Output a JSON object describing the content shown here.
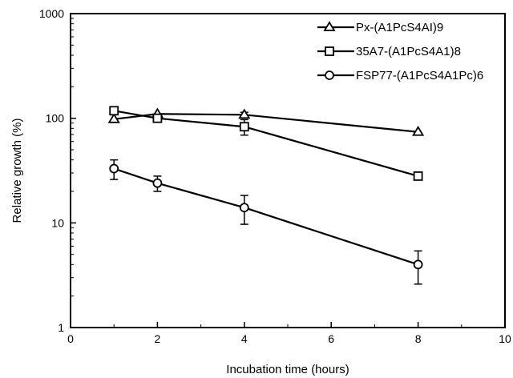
{
  "chart_data": {
    "type": "line",
    "title": "",
    "xlabel": "Incubation time (hours)",
    "ylabel": "Relative growth (%)",
    "xlim": [
      0,
      10
    ],
    "ylim": [
      1,
      1000
    ],
    "yscale": "log",
    "grid": false,
    "legend_position": "top-right",
    "x_ticks": [
      0,
      2,
      4,
      6,
      8,
      10
    ],
    "y_ticks": [
      1,
      10,
      100,
      1000
    ],
    "x_tick_labels": [
      "0",
      "2",
      "4",
      "6",
      "8",
      "10"
    ],
    "y_tick_labels": [
      "1",
      "10",
      "100",
      "1000"
    ],
    "series": [
      {
        "name": "Px-(A1PcS4AI)9",
        "marker": "triangle",
        "x": [
          1,
          2,
          4,
          8
        ],
        "y": [
          98,
          110,
          108,
          74
        ],
        "err": [
          0,
          0,
          6,
          0
        ]
      },
      {
        "name": "35A7-(A1PcS4A1)8",
        "marker": "square",
        "x": [
          1,
          2,
          4,
          8
        ],
        "y": [
          118,
          100,
          83,
          28
        ],
        "err": [
          0,
          0,
          14,
          0
        ]
      },
      {
        "name": "FSP77-(A1PcS4A1Pc)6",
        "marker": "circle",
        "x": [
          1,
          2,
          4,
          8
        ],
        "y": [
          33,
          24,
          14,
          4
        ],
        "err": [
          7,
          4,
          4.3,
          1.4
        ]
      }
    ]
  }
}
